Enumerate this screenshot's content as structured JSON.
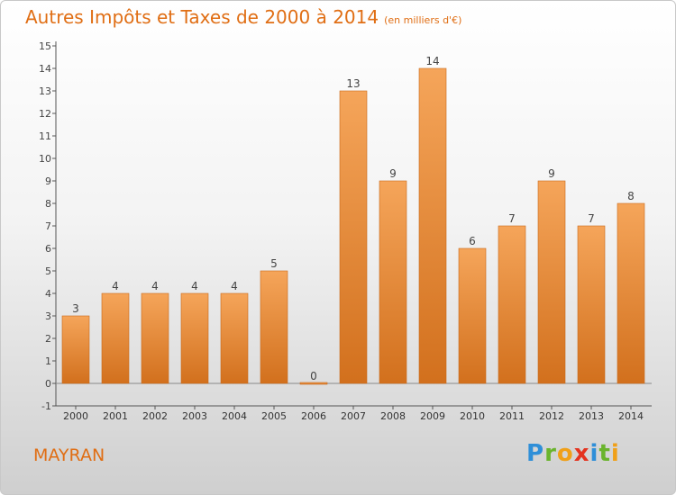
{
  "header": {
    "title": "Autres Impôts et Taxes de 2000 à 2014",
    "unit": "(en milliers d'€)"
  },
  "footer": {
    "commune": "MAYRAN",
    "logo_letters": [
      "P",
      "r",
      "o",
      "x",
      "i",
      "t",
      "i"
    ],
    "logo_colors": [
      "#2f8fd8",
      "#6ab42d",
      "#f0a019",
      "#e4331f",
      "#2f8fd8",
      "#6ab42d",
      "#f0a019"
    ]
  },
  "chart_data": {
    "type": "bar",
    "title": "Autres Impôts et Taxes de 2000 à 2014",
    "categories": [
      "2000",
      "2001",
      "2002",
      "2003",
      "2004",
      "2005",
      "2006",
      "2007",
      "2008",
      "2009",
      "2010",
      "2011",
      "2012",
      "2013",
      "2014"
    ],
    "values": [
      3,
      4,
      4,
      4,
      4,
      5,
      0,
      13,
      9,
      14,
      6,
      7,
      9,
      7,
      8
    ],
    "value_labels": [
      "3",
      "4",
      "4",
      "4",
      "4",
      "5",
      "0",
      "13",
      "9",
      "14",
      "6",
      "7",
      "9",
      "7",
      "8"
    ],
    "yticks": [
      -1,
      0,
      1,
      2,
      3,
      4,
      5,
      6,
      7,
      8,
      9,
      10,
      11,
      12,
      13,
      14,
      15
    ],
    "ytick_labels": [
      "-1",
      "0",
      "1",
      "2",
      "3",
      "4",
      "5",
      "6",
      "7",
      "8",
      "9",
      "10",
      "11",
      "12",
      "13",
      "14",
      "15"
    ],
    "ylim": [
      -1,
      15
    ],
    "grid": false,
    "bar_color_top": "#f5a55a",
    "bar_color_bottom": "#d2701d"
  }
}
